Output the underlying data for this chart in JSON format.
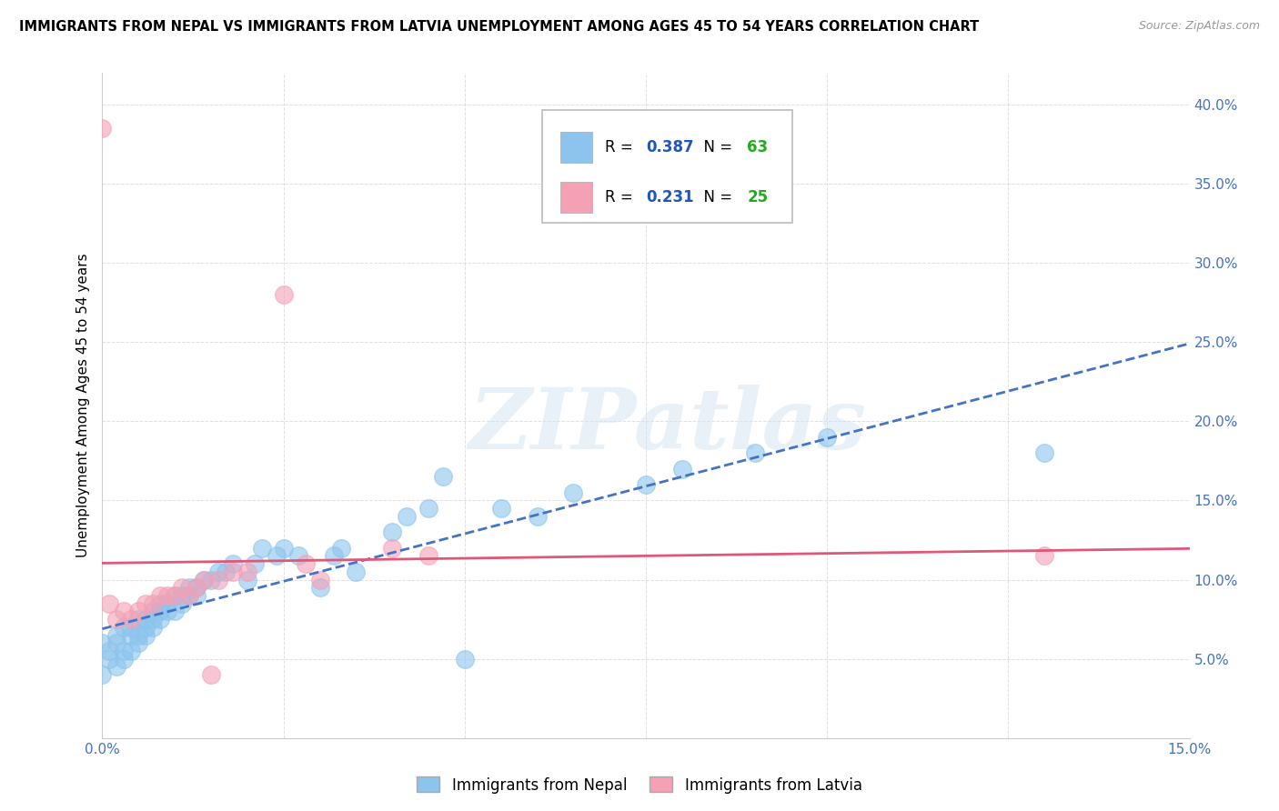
{
  "title": "IMMIGRANTS FROM NEPAL VS IMMIGRANTS FROM LATVIA UNEMPLOYMENT AMONG AGES 45 TO 54 YEARS CORRELATION CHART",
  "source": "Source: ZipAtlas.com",
  "ylabel": "Unemployment Among Ages 45 to 54 years",
  "xlim": [
    0.0,
    0.15
  ],
  "ylim": [
    0.0,
    0.42
  ],
  "nepal_color": "#8cc4ed",
  "latvia_color": "#f4a0b5",
  "nepal_line_color": "#4472c4",
  "latvia_line_color": "#e05878",
  "nepal_R": 0.387,
  "nepal_N": 63,
  "latvia_R": 0.231,
  "latvia_N": 25,
  "legend_R_color": "#2255bb",
  "legend_N_color": "#22aa22",
  "nepal_scatter_x": [
    0.0,
    0.0,
    0.001,
    0.001,
    0.002,
    0.002,
    0.002,
    0.003,
    0.003,
    0.003,
    0.004,
    0.004,
    0.004,
    0.005,
    0.005,
    0.005,
    0.006,
    0.006,
    0.006,
    0.007,
    0.007,
    0.007,
    0.008,
    0.008,
    0.008,
    0.009,
    0.009,
    0.01,
    0.01,
    0.011,
    0.011,
    0.012,
    0.012,
    0.013,
    0.013,
    0.014,
    0.015,
    0.016,
    0.017,
    0.018,
    0.02,
    0.021,
    0.022,
    0.024,
    0.025,
    0.027,
    0.03,
    0.032,
    0.033,
    0.035,
    0.04,
    0.042,
    0.045,
    0.047,
    0.05,
    0.055,
    0.06,
    0.065,
    0.075,
    0.08,
    0.09,
    0.1,
    0.13
  ],
  "nepal_scatter_y": [
    0.04,
    0.06,
    0.05,
    0.055,
    0.045,
    0.06,
    0.065,
    0.05,
    0.055,
    0.07,
    0.055,
    0.065,
    0.07,
    0.06,
    0.065,
    0.075,
    0.065,
    0.07,
    0.075,
    0.07,
    0.075,
    0.08,
    0.075,
    0.08,
    0.085,
    0.08,
    0.085,
    0.08,
    0.09,
    0.085,
    0.09,
    0.09,
    0.095,
    0.09,
    0.095,
    0.1,
    0.1,
    0.105,
    0.105,
    0.11,
    0.1,
    0.11,
    0.12,
    0.115,
    0.12,
    0.115,
    0.095,
    0.115,
    0.12,
    0.105,
    0.13,
    0.14,
    0.145,
    0.165,
    0.05,
    0.145,
    0.14,
    0.155,
    0.16,
    0.17,
    0.18,
    0.19,
    0.18
  ],
  "latvia_scatter_x": [
    0.0,
    0.001,
    0.002,
    0.003,
    0.004,
    0.005,
    0.006,
    0.007,
    0.008,
    0.009,
    0.01,
    0.011,
    0.012,
    0.013,
    0.014,
    0.015,
    0.016,
    0.018,
    0.02,
    0.025,
    0.028,
    0.03,
    0.04,
    0.045,
    0.13
  ],
  "latvia_scatter_y": [
    0.385,
    0.085,
    0.075,
    0.08,
    0.075,
    0.08,
    0.085,
    0.085,
    0.09,
    0.09,
    0.09,
    0.095,
    0.09,
    0.095,
    0.1,
    0.04,
    0.1,
    0.105,
    0.105,
    0.28,
    0.11,
    0.1,
    0.12,
    0.115,
    0.115
  ],
  "nepal_line_start_x": 0.0,
  "nepal_line_end_x": 0.15,
  "latvia_line_start_x": 0.0,
  "latvia_line_end_x": 0.15,
  "watermark_text": "ZIPatlas"
}
